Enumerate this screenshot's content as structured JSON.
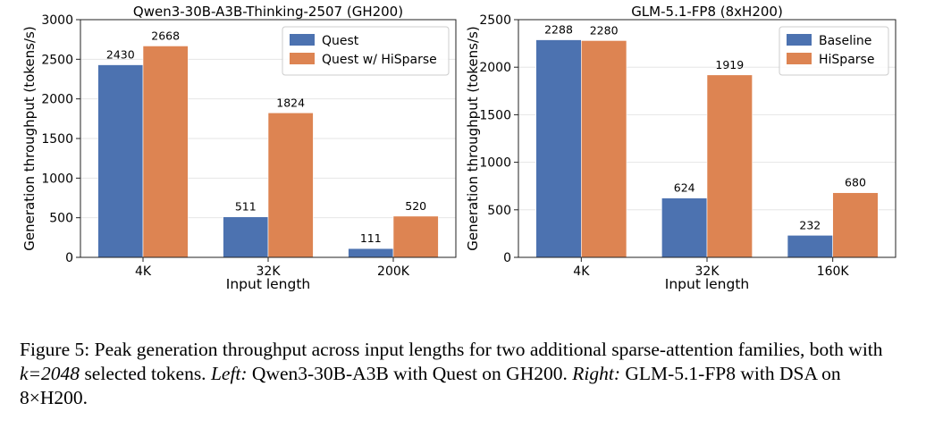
{
  "chart_data": [
    {
      "type": "bar",
      "title": "Qwen3-30B-A3B-Thinking-2507 (GH200)",
      "xlabel": "Input length",
      "ylabel": "Generation throughput (tokens/s)",
      "categories": [
        "4K",
        "32K",
        "200K"
      ],
      "ylim": [
        0,
        3000
      ],
      "yticks": [
        0,
        500,
        1000,
        1500,
        2000,
        2500,
        3000
      ],
      "grid": true,
      "legend": "top-right",
      "series": [
        {
          "name": "Quest",
          "color": "#4c72b0",
          "values": [
            2430,
            511,
            111
          ]
        },
        {
          "name": "Quest w/ HiSparse",
          "color": "#dd8452",
          "values": [
            2668,
            1824,
            520
          ]
        }
      ]
    },
    {
      "type": "bar",
      "title": "GLM-5.1-FP8 (8xH200)",
      "xlabel": "Input length",
      "ylabel": "Generation throughput (tokens/s)",
      "categories": [
        "4K",
        "32K",
        "160K"
      ],
      "ylim": [
        0,
        2500
      ],
      "yticks": [
        0,
        500,
        1000,
        1500,
        2000,
        2500
      ],
      "grid": true,
      "legend": "top-right",
      "series": [
        {
          "name": "Baseline",
          "color": "#4c72b0",
          "values": [
            2288,
            624,
            232
          ]
        },
        {
          "name": "HiSparse",
          "color": "#dd8452",
          "values": [
            2280,
            1919,
            680
          ]
        }
      ]
    }
  ],
  "caption": {
    "label": "Figure 5: Peak generation throughput across input lengths for two additional sparse-attention families, both with ",
    "k_expr": "k=2048",
    "mid": " selected tokens. ",
    "left_label": "Left:",
    "left_text": " Qwen3-30B-A3B with Quest on GH200. ",
    "right_label": "Right:",
    "right_text": " GLM-5.1-FP8 with DSA on 8×H200."
  }
}
